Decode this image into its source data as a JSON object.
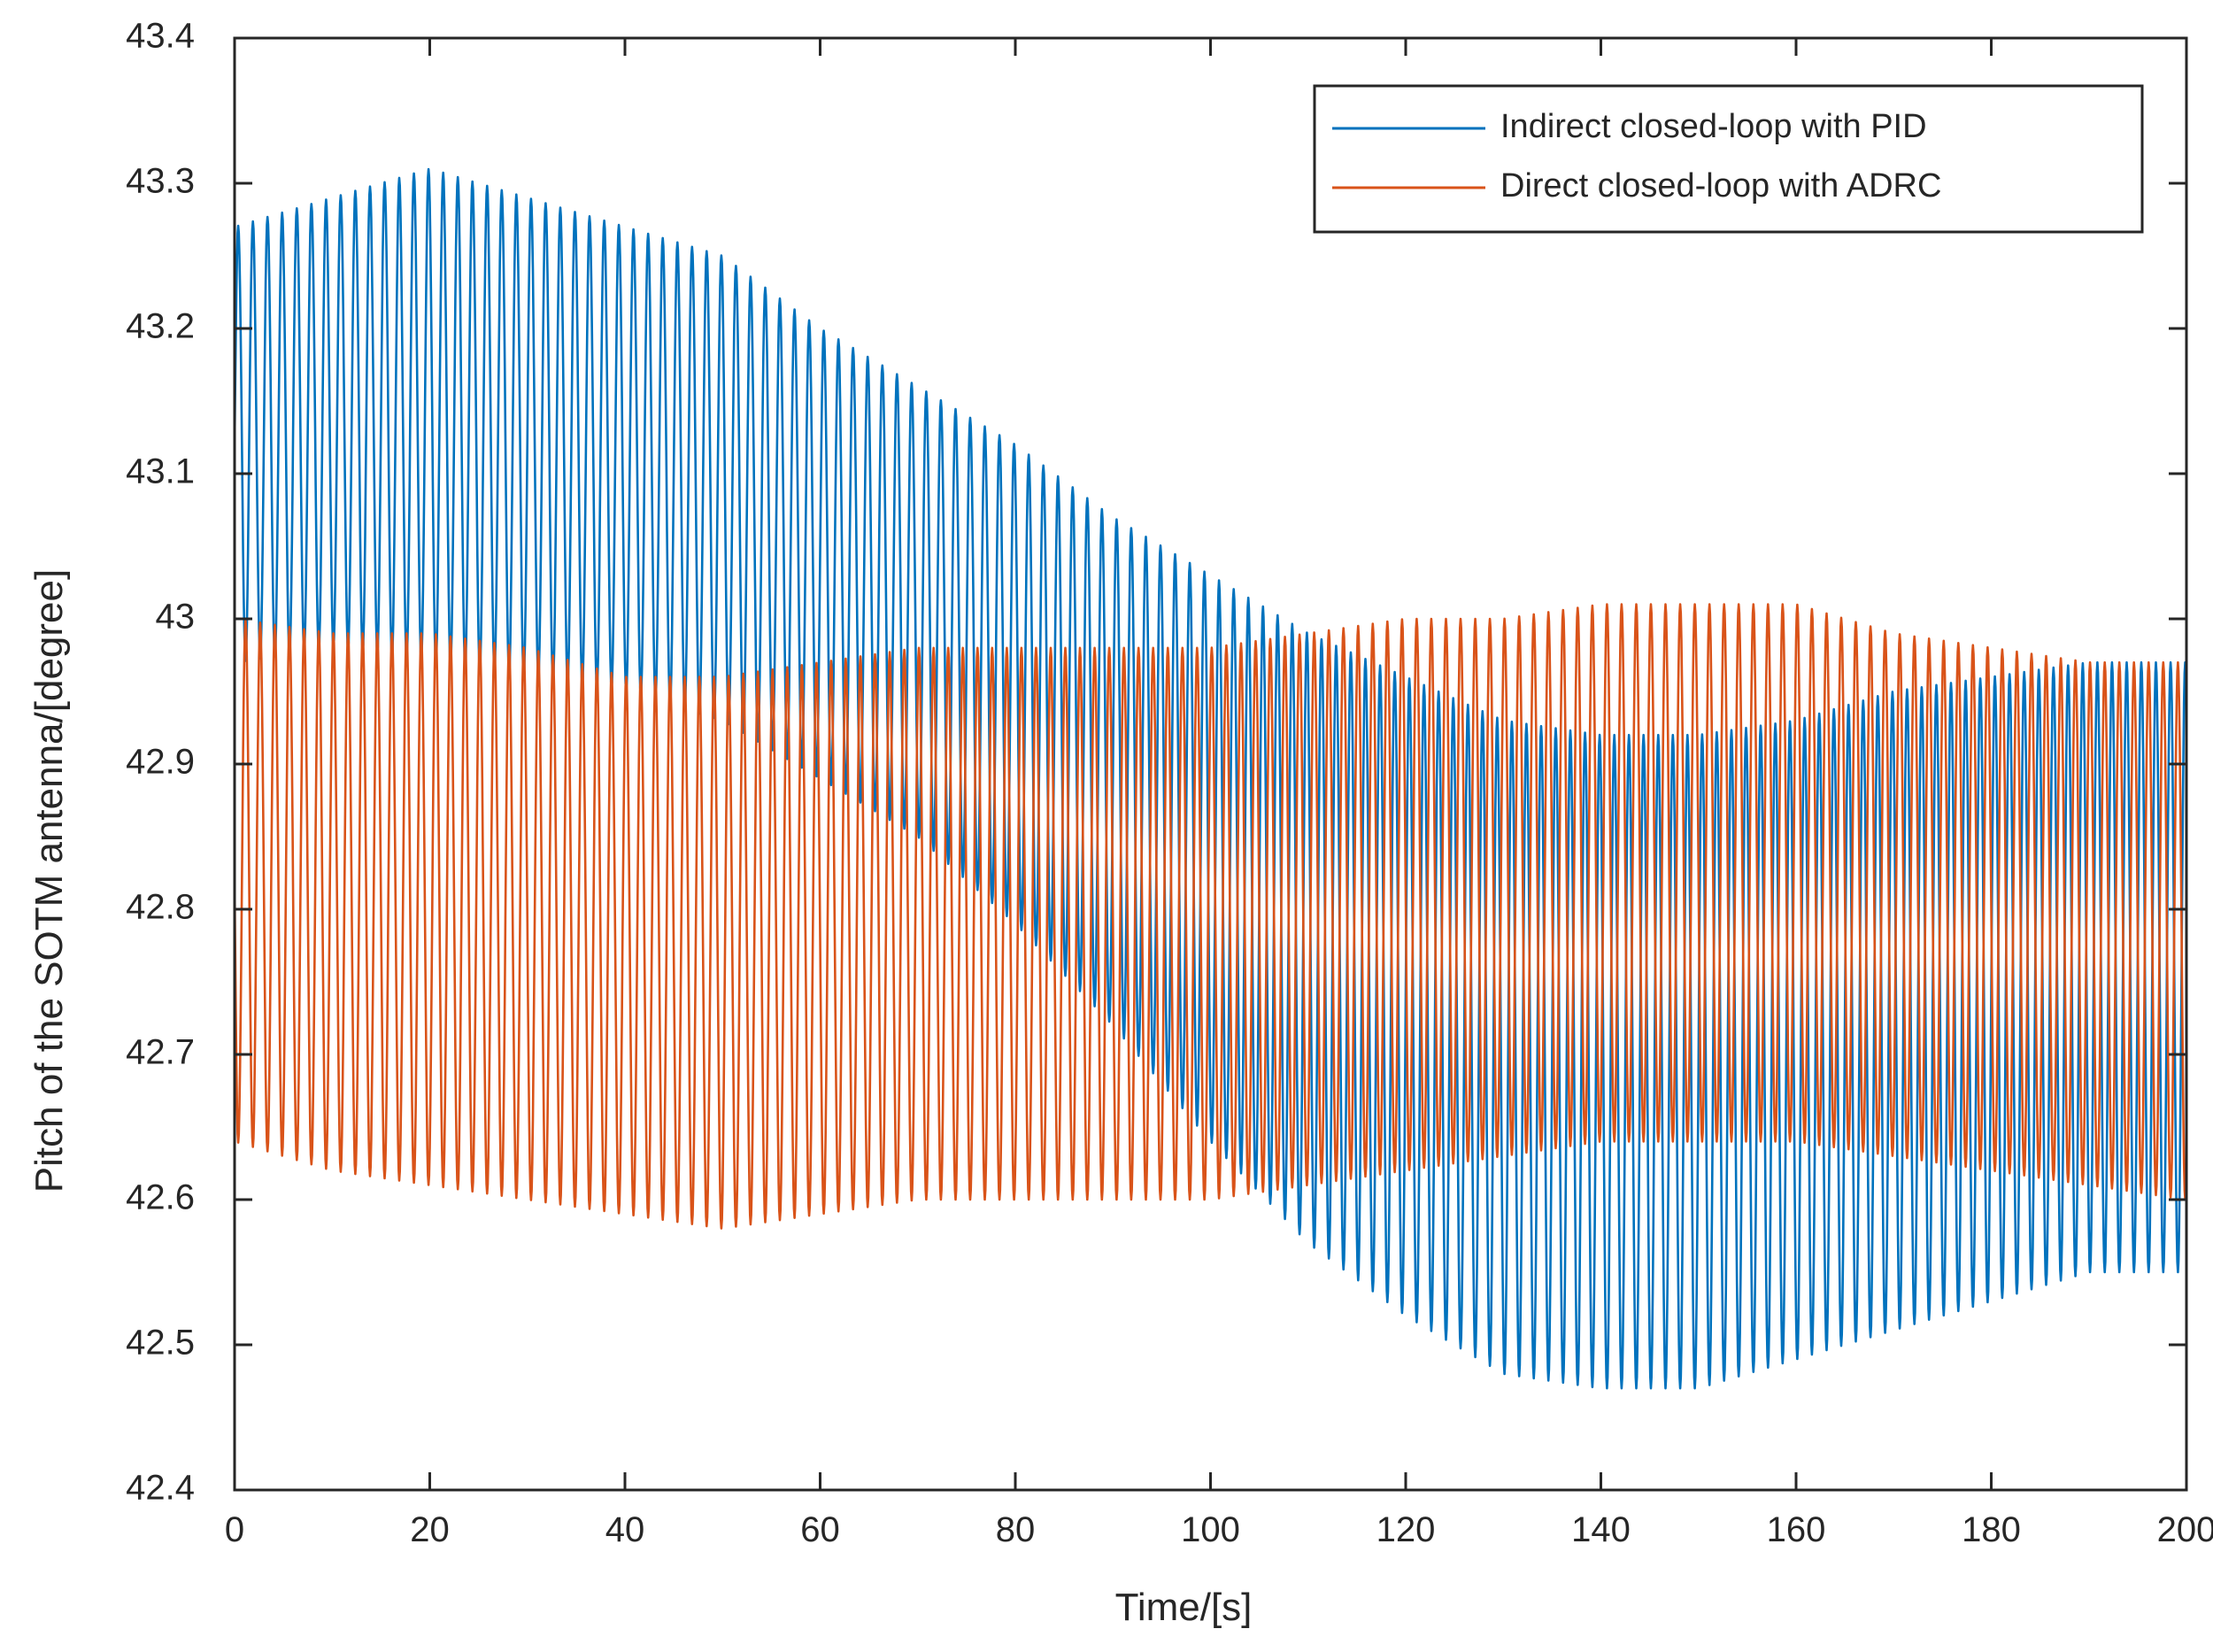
{
  "chart_data": {
    "type": "line",
    "title": "",
    "xlabel": "Time/[s]",
    "ylabel": "Pitch of the SOTM antenna/[degree]",
    "xlim": [
      0,
      200
    ],
    "ylim": [
      42.4,
      43.4
    ],
    "xticks": [
      0,
      20,
      40,
      60,
      80,
      100,
      120,
      140,
      160,
      180,
      200
    ],
    "xtick_labels": [
      "0",
      "20",
      "40",
      "60",
      "80",
      "100",
      "120",
      "140",
      "160",
      "180",
      "200"
    ],
    "yticks": [
      42.4,
      42.5,
      42.6,
      42.7,
      42.8,
      42.9,
      43.0,
      43.1,
      43.2,
      43.3,
      43.4
    ],
    "ytick_labels": [
      "42.4",
      "42.5",
      "42.6",
      "42.7",
      "42.8",
      "42.9",
      "43",
      "43.1",
      "43.2",
      "43.3",
      "43.4"
    ],
    "grid": false,
    "legend_position": "top-right",
    "series": [
      {
        "name": "Indirect closed-loop with PID",
        "color": "#0072BD",
        "oscillation_period_s": 1.5,
        "envelope_time_s": [
          0,
          10,
          20,
          30,
          40,
          50,
          60,
          70,
          80,
          90,
          100,
          110,
          120,
          130,
          140,
          150,
          160,
          170,
          180,
          190,
          200
        ],
        "envelope_upper": [
          43.27,
          43.29,
          43.31,
          43.29,
          43.27,
          43.25,
          43.2,
          43.16,
          43.12,
          43.07,
          43.03,
          42.99,
          42.96,
          42.93,
          42.92,
          42.92,
          42.93,
          42.95,
          42.96,
          42.97,
          42.97
        ],
        "envelope_lower": [
          42.97,
          42.98,
          42.97,
          42.96,
          42.95,
          42.93,
          42.89,
          42.85,
          42.79,
          42.72,
          42.64,
          42.57,
          42.52,
          42.48,
          42.47,
          42.47,
          42.49,
          42.51,
          42.53,
          42.55,
          42.55
        ]
      },
      {
        "name": "Direct closed-loop with ADRC",
        "color": "#D95319",
        "oscillation_period_s": 1.5,
        "envelope_time_s": [
          0,
          10,
          20,
          30,
          40,
          50,
          60,
          70,
          80,
          90,
          100,
          110,
          120,
          130,
          140,
          150,
          160,
          170,
          180,
          190,
          200
        ],
        "envelope_upper": [
          43.0,
          42.99,
          42.99,
          42.98,
          42.96,
          42.96,
          42.97,
          42.98,
          42.98,
          42.98,
          42.98,
          42.99,
          43.0,
          43.0,
          43.01,
          43.01,
          43.01,
          42.99,
          42.98,
          42.97,
          42.97
        ],
        "envelope_lower": [
          42.64,
          42.62,
          42.61,
          42.6,
          42.59,
          42.58,
          42.59,
          42.6,
          42.6,
          42.6,
          42.6,
          42.61,
          42.62,
          42.63,
          42.64,
          42.64,
          42.64,
          42.63,
          42.62,
          42.61,
          42.6
        ]
      }
    ]
  }
}
